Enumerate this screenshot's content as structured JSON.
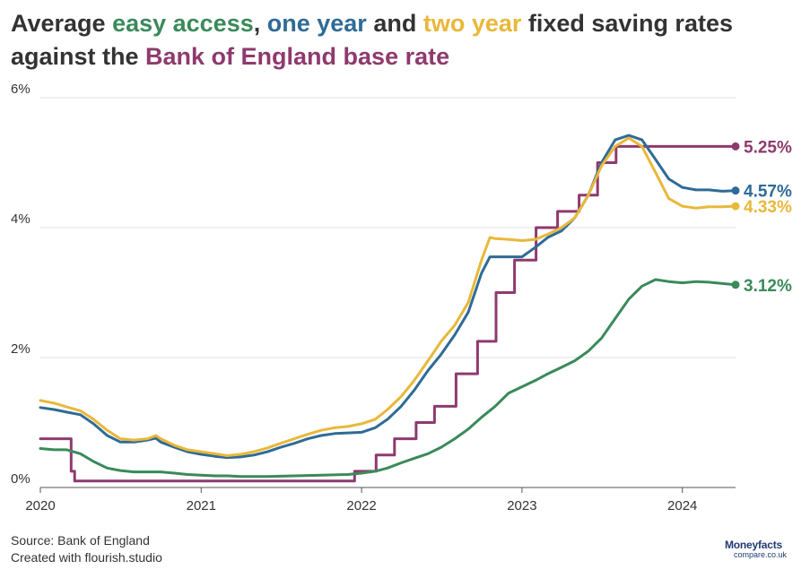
{
  "title": {
    "part1": "Average ",
    "easy": "easy access",
    "part2": ", ",
    "one": "one year",
    "part3": " and ",
    "two": "two year",
    "part4": " fixed saving rates against the ",
    "boe": "Bank of England base rate"
  },
  "footer": {
    "source": "Source: Bank of England",
    "created": "Created with flourish.studio"
  },
  "logo": {
    "main": "Moneyfacts",
    "sub": "compare.co.uk"
  },
  "colors": {
    "easy": "#3a8a5a",
    "one": "#2f6b96",
    "two": "#e8b83a",
    "boe": "#8e3a6e",
    "grid": "#e2e2e2",
    "text": "#333333"
  },
  "chart_data": {
    "type": "line",
    "x_range": [
      "2020-01-01",
      "2024-05-01"
    ],
    "ylim": [
      0,
      6
    ],
    "y_ticks": [
      "0%",
      "2%",
      "4%",
      "6%"
    ],
    "y_tick_values": [
      0,
      2,
      4,
      6
    ],
    "x_ticks": [
      "2020",
      "2021",
      "2022",
      "2023",
      "2024"
    ],
    "x_tick_values": [
      "2020-01-01",
      "2021-01-01",
      "2022-01-01",
      "2023-01-01",
      "2024-01-01"
    ],
    "grid": true,
    "series": [
      {
        "key": "boe",
        "end_label": "5.25%",
        "step": true,
        "points": [
          [
            "2020-01-01",
            0.75
          ],
          [
            "2020-03-11",
            0.25
          ],
          [
            "2020-03-19",
            0.1
          ],
          [
            "2021-12-16",
            0.25
          ],
          [
            "2022-02-03",
            0.5
          ],
          [
            "2022-03-17",
            0.75
          ],
          [
            "2022-05-05",
            1.0
          ],
          [
            "2022-06-16",
            1.25
          ],
          [
            "2022-08-04",
            1.75
          ],
          [
            "2022-09-22",
            2.25
          ],
          [
            "2022-11-03",
            3.0
          ],
          [
            "2022-12-15",
            3.5
          ],
          [
            "2023-02-02",
            4.0
          ],
          [
            "2023-03-23",
            4.25
          ],
          [
            "2023-05-11",
            4.5
          ],
          [
            "2023-06-22",
            5.0
          ],
          [
            "2023-08-03",
            5.25
          ],
          [
            "2024-05-01",
            5.25
          ]
        ]
      },
      {
        "key": "one",
        "end_label": "4.57%",
        "step": false,
        "points": [
          [
            "2020-01-01",
            1.23
          ],
          [
            "2020-02-01",
            1.2
          ],
          [
            "2020-03-01",
            1.16
          ],
          [
            "2020-04-01",
            1.12
          ],
          [
            "2020-05-01",
            0.98
          ],
          [
            "2020-06-01",
            0.8
          ],
          [
            "2020-07-01",
            0.7
          ],
          [
            "2020-08-01",
            0.7
          ],
          [
            "2020-09-01",
            0.73
          ],
          [
            "2020-09-20",
            0.76
          ],
          [
            "2020-10-01",
            0.7
          ],
          [
            "2020-11-01",
            0.62
          ],
          [
            "2020-12-01",
            0.55
          ],
          [
            "2021-01-01",
            0.51
          ],
          [
            "2021-02-01",
            0.48
          ],
          [
            "2021-03-01",
            0.46
          ],
          [
            "2021-04-01",
            0.47
          ],
          [
            "2021-05-01",
            0.5
          ],
          [
            "2021-06-01",
            0.55
          ],
          [
            "2021-07-01",
            0.62
          ],
          [
            "2021-08-01",
            0.68
          ],
          [
            "2021-09-01",
            0.75
          ],
          [
            "2021-10-01",
            0.8
          ],
          [
            "2021-11-01",
            0.83
          ],
          [
            "2021-12-01",
            0.84
          ],
          [
            "2022-01-01",
            0.85
          ],
          [
            "2022-02-01",
            0.92
          ],
          [
            "2022-03-01",
            1.05
          ],
          [
            "2022-04-01",
            1.25
          ],
          [
            "2022-05-01",
            1.5
          ],
          [
            "2022-06-01",
            1.8
          ],
          [
            "2022-07-01",
            2.05
          ],
          [
            "2022-08-01",
            2.35
          ],
          [
            "2022-09-01",
            2.7
          ],
          [
            "2022-10-01",
            3.3
          ],
          [
            "2022-10-20",
            3.55
          ],
          [
            "2022-11-01",
            3.55
          ],
          [
            "2022-12-01",
            3.55
          ],
          [
            "2023-01-01",
            3.55
          ],
          [
            "2023-02-01",
            3.7
          ],
          [
            "2023-03-01",
            3.85
          ],
          [
            "2023-04-01",
            3.95
          ],
          [
            "2023-05-01",
            4.15
          ],
          [
            "2023-06-01",
            4.5
          ],
          [
            "2023-07-01",
            5.0
          ],
          [
            "2023-08-01",
            5.35
          ],
          [
            "2023-09-01",
            5.42
          ],
          [
            "2023-10-01",
            5.35
          ],
          [
            "2023-11-01",
            5.05
          ],
          [
            "2023-12-01",
            4.75
          ],
          [
            "2024-01-01",
            4.62
          ],
          [
            "2024-02-01",
            4.58
          ],
          [
            "2024-03-01",
            4.58
          ],
          [
            "2024-04-01",
            4.56
          ],
          [
            "2024-05-01",
            4.57
          ]
        ]
      },
      {
        "key": "two",
        "end_label": "4.33%",
        "step": false,
        "points": [
          [
            "2020-01-01",
            1.34
          ],
          [
            "2020-02-01",
            1.3
          ],
          [
            "2020-03-01",
            1.24
          ],
          [
            "2020-04-01",
            1.18
          ],
          [
            "2020-05-01",
            1.05
          ],
          [
            "2020-06-01",
            0.88
          ],
          [
            "2020-07-01",
            0.75
          ],
          [
            "2020-08-01",
            0.73
          ],
          [
            "2020-09-01",
            0.75
          ],
          [
            "2020-09-20",
            0.8
          ],
          [
            "2020-10-01",
            0.75
          ],
          [
            "2020-11-01",
            0.65
          ],
          [
            "2020-12-01",
            0.58
          ],
          [
            "2021-01-01",
            0.55
          ],
          [
            "2021-02-01",
            0.52
          ],
          [
            "2021-03-01",
            0.49
          ],
          [
            "2021-04-01",
            0.51
          ],
          [
            "2021-05-01",
            0.55
          ],
          [
            "2021-06-01",
            0.61
          ],
          [
            "2021-07-01",
            0.68
          ],
          [
            "2021-08-01",
            0.75
          ],
          [
            "2021-09-01",
            0.82
          ],
          [
            "2021-10-01",
            0.88
          ],
          [
            "2021-11-01",
            0.92
          ],
          [
            "2021-12-01",
            0.94
          ],
          [
            "2022-01-01",
            0.98
          ],
          [
            "2022-02-01",
            1.05
          ],
          [
            "2022-03-01",
            1.2
          ],
          [
            "2022-04-01",
            1.4
          ],
          [
            "2022-05-01",
            1.65
          ],
          [
            "2022-06-01",
            1.95
          ],
          [
            "2022-07-01",
            2.25
          ],
          [
            "2022-08-01",
            2.5
          ],
          [
            "2022-09-01",
            2.85
          ],
          [
            "2022-10-01",
            3.5
          ],
          [
            "2022-10-20",
            3.85
          ],
          [
            "2022-11-01",
            3.83
          ],
          [
            "2022-12-01",
            3.82
          ],
          [
            "2023-01-01",
            3.8
          ],
          [
            "2023-02-01",
            3.82
          ],
          [
            "2023-03-01",
            3.9
          ],
          [
            "2023-04-01",
            4.0
          ],
          [
            "2023-05-01",
            4.15
          ],
          [
            "2023-06-01",
            4.5
          ],
          [
            "2023-07-01",
            4.95
          ],
          [
            "2023-08-01",
            5.25
          ],
          [
            "2023-09-01",
            5.38
          ],
          [
            "2023-10-01",
            5.25
          ],
          [
            "2023-11-01",
            4.85
          ],
          [
            "2023-12-01",
            4.45
          ],
          [
            "2024-01-01",
            4.33
          ],
          [
            "2024-02-01",
            4.3
          ],
          [
            "2024-03-01",
            4.32
          ],
          [
            "2024-04-01",
            4.32
          ],
          [
            "2024-05-01",
            4.33
          ]
        ]
      },
      {
        "key": "easy",
        "end_label": "3.12%",
        "step": false,
        "points": [
          [
            "2020-01-01",
            0.6
          ],
          [
            "2020-02-01",
            0.58
          ],
          [
            "2020-03-01",
            0.58
          ],
          [
            "2020-04-01",
            0.52
          ],
          [
            "2020-05-01",
            0.4
          ],
          [
            "2020-06-01",
            0.3
          ],
          [
            "2020-07-01",
            0.26
          ],
          [
            "2020-08-01",
            0.24
          ],
          [
            "2020-09-01",
            0.24
          ],
          [
            "2020-10-01",
            0.24
          ],
          [
            "2020-11-01",
            0.22
          ],
          [
            "2020-12-01",
            0.2
          ],
          [
            "2021-01-01",
            0.19
          ],
          [
            "2021-02-01",
            0.18
          ],
          [
            "2021-03-01",
            0.18
          ],
          [
            "2021-04-01",
            0.17
          ],
          [
            "2021-06-01",
            0.17
          ],
          [
            "2021-08-01",
            0.18
          ],
          [
            "2021-10-01",
            0.19
          ],
          [
            "2021-12-01",
            0.2
          ],
          [
            "2022-01-01",
            0.22
          ],
          [
            "2022-02-01",
            0.25
          ],
          [
            "2022-03-01",
            0.3
          ],
          [
            "2022-04-01",
            0.38
          ],
          [
            "2022-05-01",
            0.45
          ],
          [
            "2022-06-01",
            0.52
          ],
          [
            "2022-07-01",
            0.62
          ],
          [
            "2022-08-01",
            0.75
          ],
          [
            "2022-09-01",
            0.9
          ],
          [
            "2022-10-01",
            1.08
          ],
          [
            "2022-11-01",
            1.25
          ],
          [
            "2022-12-01",
            1.45
          ],
          [
            "2023-01-01",
            1.55
          ],
          [
            "2023-02-01",
            1.65
          ],
          [
            "2023-03-01",
            1.75
          ],
          [
            "2023-04-01",
            1.85
          ],
          [
            "2023-05-01",
            1.95
          ],
          [
            "2023-06-01",
            2.1
          ],
          [
            "2023-07-01",
            2.3
          ],
          [
            "2023-08-01",
            2.6
          ],
          [
            "2023-09-01",
            2.9
          ],
          [
            "2023-10-01",
            3.1
          ],
          [
            "2023-11-01",
            3.2
          ],
          [
            "2023-12-01",
            3.17
          ],
          [
            "2024-01-01",
            3.15
          ],
          [
            "2024-02-01",
            3.17
          ],
          [
            "2024-03-01",
            3.16
          ],
          [
            "2024-04-01",
            3.14
          ],
          [
            "2024-05-01",
            3.12
          ]
        ]
      }
    ]
  }
}
